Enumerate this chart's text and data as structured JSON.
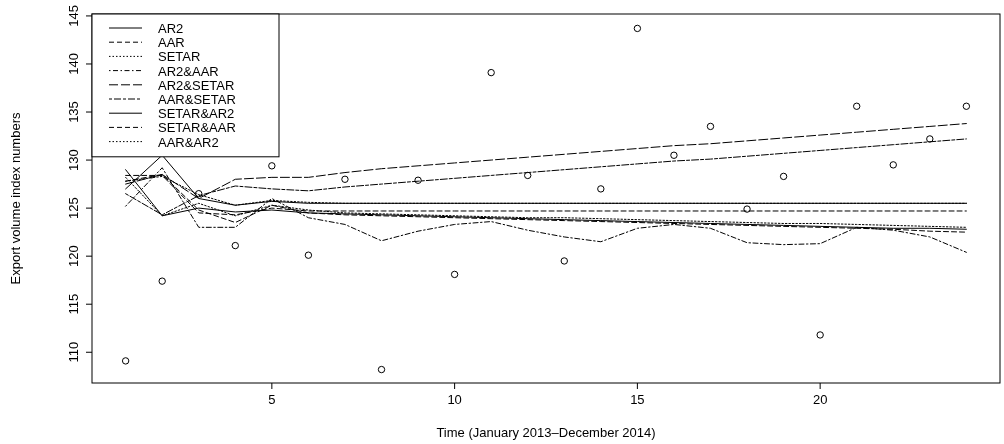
{
  "chart_data": {
    "type": "line",
    "xlabel": "Time (January 2013–December 2014)",
    "ylabel": "Export volume index numbers",
    "xlim": [
      0.08,
      24.92
    ],
    "ylim": [
      106.8,
      145.2
    ],
    "xticks": [
      5,
      10,
      15,
      20
    ],
    "yticks": [
      110,
      115,
      120,
      125,
      130,
      135,
      140,
      145
    ],
    "grid": false,
    "legend": "top left",
    "x": [
      1,
      2,
      3,
      4,
      5,
      6,
      7,
      8,
      9,
      10,
      11,
      12,
      13,
      14,
      15,
      16,
      17,
      18,
      19,
      20,
      21,
      22,
      23,
      24
    ],
    "series": [
      {
        "type": "scatter",
        "marker": "circle",
        "color": "#000000",
        "values": [
          109.1,
          117.4,
          126.5,
          121.1,
          129.4,
          120.1,
          128.0,
          108.2,
          127.9,
          118.1,
          139.1,
          128.4,
          119.5,
          127.0,
          143.7,
          130.5,
          133.5,
          124.9,
          128.3,
          111.8,
          135.6,
          129.5,
          132.2,
          135.6
        ]
      },
      {
        "name": "AR2",
        "line_style": "solid",
        "color": "#000000",
        "values": [
          129.0,
          124.2,
          125.0,
          124.6,
          124.8,
          124.5,
          124.4,
          124.3,
          124.2,
          124.1,
          124.0,
          123.9,
          123.8,
          123.7,
          123.6,
          123.5,
          123.4,
          123.3,
          123.2,
          123.1,
          123.0,
          122.9,
          122.9,
          122.8
        ]
      },
      {
        "name": "AAR",
        "line_style": "dashed",
        "color": "#000000",
        "values": [
          128.4,
          128.4,
          124.5,
          124.3,
          125.0,
          124.7,
          124.7,
          124.7,
          124.7,
          124.7,
          124.7,
          124.7,
          124.7,
          124.7,
          124.7,
          124.7,
          124.7,
          124.7,
          124.7,
          124.7,
          124.7,
          124.7,
          124.7,
          124.7
        ]
      },
      {
        "name": "SETAR",
        "line_style": "dotted",
        "color": "#000000",
        "values": [
          127.8,
          128.3,
          126.4,
          125.3,
          125.8,
          125.6,
          125.5,
          125.5,
          125.5,
          125.5,
          125.5,
          125.5,
          125.5,
          125.5,
          125.5,
          125.5,
          125.5,
          125.5,
          125.5,
          125.5,
          125.5,
          125.5,
          125.5,
          125.5
        ]
      },
      {
        "name": "AR2&AAR",
        "line_style": "dashdot",
        "color": "#000000",
        "values": [
          125.2,
          129.2,
          123.0,
          123.0,
          126.0,
          124.0,
          123.3,
          121.6,
          122.6,
          123.3,
          123.6,
          122.7,
          122.0,
          121.5,
          122.9,
          123.3,
          122.9,
          121.4,
          121.2,
          121.3,
          123.0,
          122.7,
          122.0,
          120.4
        ]
      },
      {
        "name": "AR2&SETAR",
        "line_style": "longdash",
        "color": "#000000",
        "values": [
          127.5,
          128.5,
          126.0,
          128.0,
          128.2,
          128.2,
          128.7,
          129.1,
          129.4,
          129.7,
          130.0,
          130.3,
          130.6,
          130.9,
          131.2,
          131.5,
          131.7,
          132.0,
          132.3,
          132.6,
          132.9,
          133.2,
          133.5,
          133.8
        ]
      },
      {
        "name": "AAR&SETAR",
        "line_style": "twodash",
        "color": "#000000",
        "values": [
          126.5,
          124.3,
          126.3,
          127.3,
          127.0,
          126.8,
          127.2,
          127.5,
          127.8,
          128.1,
          128.4,
          128.7,
          129.0,
          129.3,
          129.6,
          129.9,
          130.1,
          130.4,
          130.7,
          131.0,
          131.3,
          131.6,
          131.9,
          132.2
        ]
      },
      {
        "name": "SETAR&AR2",
        "line_style": "solid",
        "color": "#000000",
        "values": [
          127.0,
          130.5,
          126.0,
          125.3,
          125.7,
          125.5,
          125.5,
          125.5,
          125.5,
          125.5,
          125.5,
          125.5,
          125.5,
          125.5,
          125.5,
          125.5,
          125.5,
          125.5,
          125.5,
          125.5,
          125.5,
          125.5,
          125.5,
          125.5
        ]
      },
      {
        "name": "SETAR&AAR",
        "line_style": "dashed",
        "color": "#000000",
        "values": [
          127.8,
          128.5,
          124.8,
          123.5,
          125.3,
          124.5,
          124.3,
          124.2,
          124.1,
          124.0,
          123.9,
          123.8,
          123.7,
          123.6,
          123.5,
          123.4,
          123.3,
          123.2,
          123.1,
          123.0,
          122.9,
          122.8,
          122.6,
          122.5
        ]
      },
      {
        "name": "AAR&AR2",
        "line_style": "dotted",
        "color": "#000000",
        "values": [
          128.2,
          124.2,
          125.5,
          124.2,
          125.3,
          124.8,
          124.5,
          124.4,
          124.3,
          124.2,
          124.1,
          124.0,
          124.0,
          123.9,
          123.8,
          123.7,
          123.6,
          123.5,
          123.4,
          123.4,
          123.3,
          123.2,
          123.1,
          123.0
        ]
      }
    ]
  }
}
